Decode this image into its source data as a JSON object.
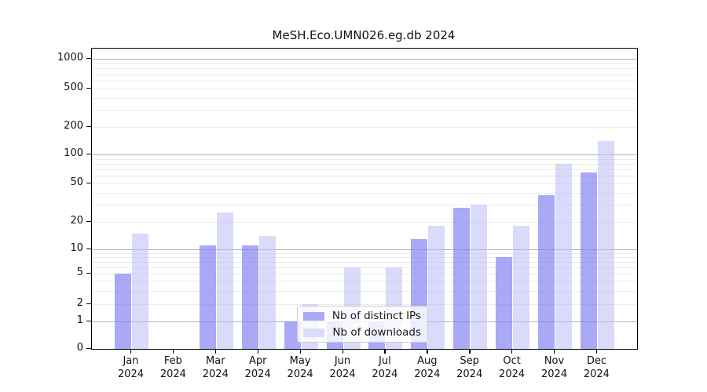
{
  "title": "MeSH.Eco.UMN026.eg.db 2024",
  "chart_data": {
    "type": "bar",
    "title": "MeSH.Eco.UMN026.eg.db 2024",
    "yscale": "symlog",
    "ylim": [
      0,
      1000
    ],
    "grid": true,
    "legend_position": "bottom-center",
    "categories": [
      "Jan",
      "Feb",
      "Mar",
      "Apr",
      "May",
      "Jun",
      "Jul",
      "Aug",
      "Sep",
      "Oct",
      "Nov",
      "Dec"
    ],
    "year_label": "2024",
    "ytick_labels": [
      "0",
      "1",
      "2",
      "5",
      "10",
      "20",
      "50",
      "100",
      "200",
      "500",
      "1000"
    ],
    "series": [
      {
        "name": "Nb of distinct IPs",
        "color": "rgba(124,124,242,0.66)",
        "color_solid": "#aaaaf6",
        "values": [
          5,
          0,
          11,
          11,
          1,
          1,
          1,
          13,
          28,
          8,
          38,
          65
        ]
      },
      {
        "name": "Nb of downloads",
        "color": "rgba(189,189,248,0.56)",
        "color_solid": "#dbdbfa",
        "values": [
          15,
          0,
          25,
          14,
          2,
          6,
          6,
          18,
          30,
          18,
          80,
          140
        ]
      }
    ]
  },
  "style_colors": {
    "major_grid": "#b3b3b3",
    "minor_grid": "#ebebeb",
    "axis": "#000000",
    "text": "#111111"
  }
}
